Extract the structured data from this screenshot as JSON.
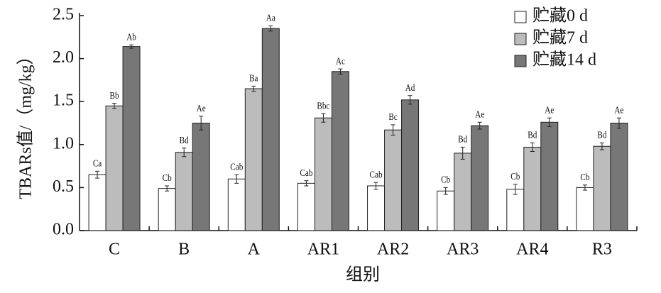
{
  "chart_data": {
    "type": "bar",
    "xlabel": "组别",
    "ylabel": "TBARs值/（mg/kg）",
    "categories": [
      "C",
      "B",
      "A",
      "AR1",
      "AR2",
      "AR3",
      "AR4",
      "R3"
    ],
    "series": [
      {
        "name": "贮藏0 d",
        "color": "#ffffff",
        "values": [
          0.65,
          0.49,
          0.6,
          0.55,
          0.52,
          0.46,
          0.48,
          0.5
        ],
        "errors": [
          0.04,
          0.03,
          0.05,
          0.03,
          0.04,
          0.04,
          0.06,
          0.03
        ],
        "letters": [
          "Ca",
          "Cb",
          "Cab",
          "Cab",
          "Cab",
          "Cb",
          "Cb",
          "Cb"
        ]
      },
      {
        "name": "贮藏7 d",
        "color": "#bcbcbc",
        "values": [
          1.45,
          0.91,
          1.65,
          1.31,
          1.17,
          0.9,
          0.97,
          0.98
        ],
        "errors": [
          0.03,
          0.05,
          0.03,
          0.05,
          0.06,
          0.07,
          0.05,
          0.04
        ],
        "letters": [
          "Bb",
          "Bd",
          "Ba",
          "Bbc",
          "Bc",
          "Bd",
          "Bd",
          "Bd"
        ]
      },
      {
        "name": "贮藏14 d",
        "color": "#777777",
        "values": [
          2.14,
          1.25,
          2.35,
          1.85,
          1.52,
          1.22,
          1.26,
          1.25
        ],
        "errors": [
          0.02,
          0.08,
          0.03,
          0.03,
          0.05,
          0.04,
          0.05,
          0.06
        ],
        "letters": [
          "Ab",
          "Ae",
          "Aa",
          "Ac",
          "Ad",
          "Ae",
          "Ae",
          "Ae"
        ]
      }
    ],
    "ylim": [
      0,
      2.5
    ],
    "yticks": [
      {
        "value": 0,
        "label": "0.0"
      },
      0.5,
      {
        "value": 1,
        "label": "1.0"
      },
      1.5,
      {
        "value": 2,
        "label": "2.0"
      },
      2.5
    ],
    "legend": "upper-right"
  }
}
